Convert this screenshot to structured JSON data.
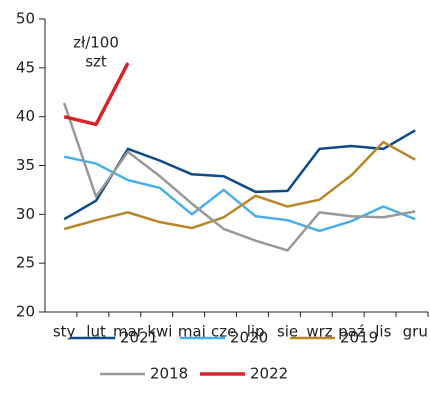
{
  "chart_data": {
    "type": "line",
    "annotation": [
      "zł/100",
      "szt"
    ],
    "categories": [
      "sty",
      "lut",
      "mar",
      "kwi",
      "maj",
      "cze",
      "lip",
      "sie",
      "wrz",
      "paź",
      "lis",
      "gru"
    ],
    "series": [
      {
        "name": "2021",
        "color": "#0d4a8a",
        "values": [
          29.5,
          31.4,
          36.7,
          35.5,
          34.1,
          33.9,
          32.3,
          32.4,
          36.7,
          37.0,
          36.7,
          38.6
        ]
      },
      {
        "name": "2020",
        "color": "#4aaee8",
        "values": [
          35.9,
          35.2,
          33.5,
          32.7,
          30.0,
          32.5,
          29.8,
          29.4,
          28.3,
          29.3,
          30.8,
          29.5
        ]
      },
      {
        "name": "2019",
        "color": "#b8862b",
        "values": [
          28.5,
          29.4,
          30.2,
          29.2,
          28.6,
          29.7,
          31.9,
          30.8,
          31.5,
          34.0,
          37.4,
          35.6
        ]
      },
      {
        "name": "2018",
        "color": "#999999",
        "values": [
          41.4,
          31.8,
          36.4,
          33.9,
          31.1,
          28.5,
          27.3,
          26.3,
          30.2,
          29.8,
          29.7,
          30.3
        ]
      },
      {
        "name": "2022",
        "color": "#d8232a",
        "values": [
          40.0,
          39.2,
          45.5,
          null,
          null,
          null,
          null,
          null,
          null,
          null,
          null,
          null
        ]
      }
    ],
    "ylim": [
      20,
      50
    ],
    "yticks": [
      20,
      25,
      30,
      35,
      40,
      45,
      50
    ],
    "grid": false
  }
}
